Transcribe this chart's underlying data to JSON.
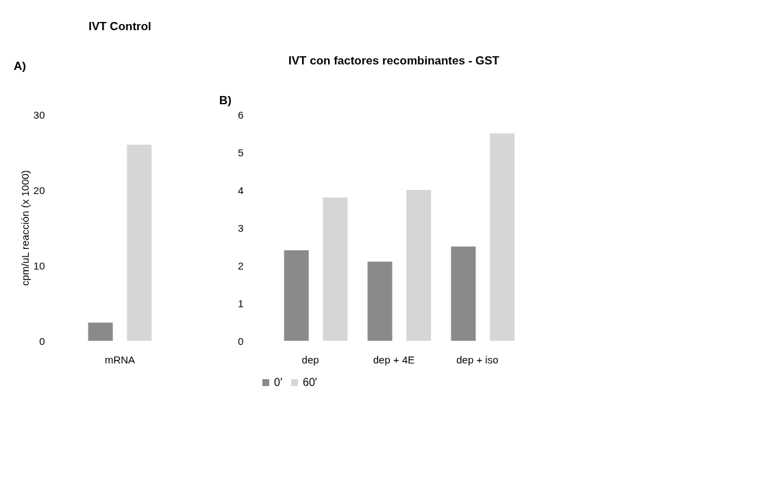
{
  "chart_data": [
    {
      "type": "bar",
      "title": "IVT Control",
      "ylabel": "cpm/uL reacción (x 1000)",
      "annotations": [
        "A)"
      ],
      "categories": [
        "mRNA"
      ],
      "series": [
        {
          "color": "#8a8a8a",
          "values": [
            2.4
          ]
        },
        {
          "color": "#d6d6d6",
          "values": [
            26
          ]
        }
      ],
      "ylim": [
        0,
        30
      ],
      "yticks": [
        0,
        10,
        20,
        30
      ],
      "grid": false,
      "legend": false
    },
    {
      "type": "bar",
      "title": "IVT con factores recombinantes - GST",
      "annotations": [
        "B)"
      ],
      "categories": [
        "dep",
        "dep + 4E",
        "dep + iso"
      ],
      "series": [
        {
          "name": "0′",
          "color": "#8a8a8a",
          "values": [
            2.4,
            2.1,
            2.5
          ]
        },
        {
          "name": "60′",
          "color": "#d6d6d6",
          "values": [
            3.8,
            4.0,
            5.5
          ]
        }
      ],
      "ylim": [
        0,
        6
      ],
      "yticks": [
        0,
        1,
        2,
        3,
        4,
        5,
        6
      ],
      "grid": false,
      "legend": "bottom"
    }
  ]
}
